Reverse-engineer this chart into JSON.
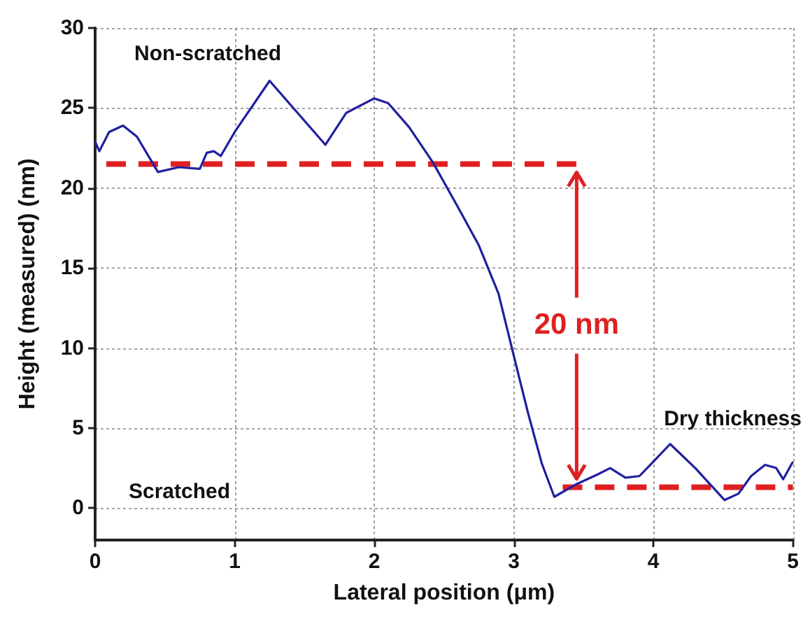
{
  "chart_data": {
    "type": "line",
    "xlabel": "Lateral position (μm)",
    "ylabel": "Height (measured) (nm)",
    "xlim": [
      0,
      5
    ],
    "xticks": [
      0,
      1,
      2,
      3,
      4,
      5
    ],
    "ylim": [
      -2,
      30
    ],
    "yticks": [
      0,
      5,
      10,
      15,
      20,
      25,
      30
    ],
    "grid": true,
    "marker": "none",
    "series": [
      {
        "color": "#2020a0",
        "line_style": "solid",
        "x": [
          0,
          0.03,
          0.1,
          0.2,
          0.3,
          0.45,
          0.6,
          0.75,
          0.8,
          0.85,
          0.9,
          1.0,
          1.25,
          1.45,
          1.65,
          1.8,
          2.0,
          2.1,
          2.25,
          2.42,
          2.6,
          2.75,
          2.89,
          3.0,
          3.1,
          3.2,
          3.29,
          3.45,
          3.6,
          3.69,
          3.8,
          3.9,
          4.0,
          4.12,
          4.3,
          4.51,
          4.61,
          4.7,
          4.8,
          4.88,
          4.93,
          5.0
        ],
        "values": [
          22.9,
          22.3,
          23.5,
          23.9,
          23.2,
          21.0,
          21.3,
          21.2,
          22.2,
          22.3,
          22.0,
          23.5,
          26.7,
          24.7,
          22.7,
          24.7,
          25.6,
          25.3,
          23.8,
          21.6,
          18.8,
          16.4,
          13.4,
          9.5,
          6.0,
          2.8,
          0.7,
          1.5,
          2.1,
          2.5,
          1.9,
          2.0,
          2.9,
          4.0,
          2.5,
          0.5,
          0.9,
          2.0,
          2.7,
          2.5,
          1.8,
          2.9
        ]
      },
      {
        "color": "#e02020",
        "line_style": "dashed",
        "x": [
          0.08,
          3.45
        ],
        "values": [
          21.5,
          21.5
        ]
      },
      {
        "color": "#e02020",
        "line_style": "dashed",
        "x": [
          3.35,
          5.0
        ],
        "values": [
          1.3,
          1.3
        ]
      }
    ],
    "annotations": [
      "Non-scratched",
      "Scratched",
      "Dry thickness",
      {
        "text": "20 nm",
        "x": 3.45,
        "y": 1.3
      }
    ]
  }
}
